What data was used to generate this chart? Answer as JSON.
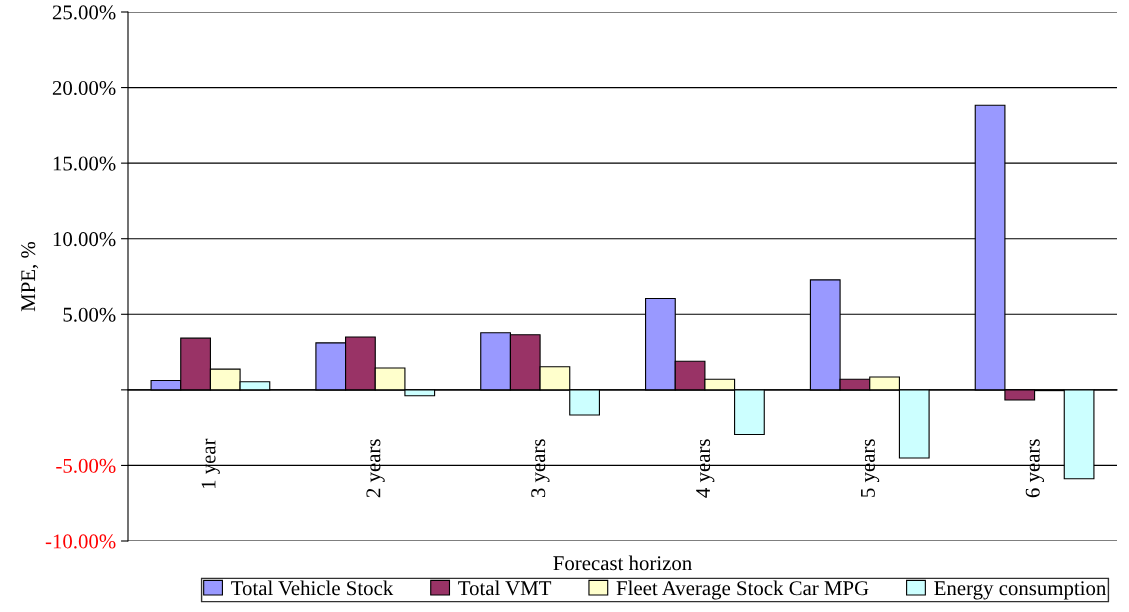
{
  "chart_data": {
    "type": "bar",
    "xlabel": "Forecast horizon",
    "ylabel": "MPE, %",
    "categories": [
      "1 year",
      "2 years",
      "3 years",
      "4 years",
      "5 years",
      "6 years"
    ],
    "series": [
      {
        "name": "Total Vehicle Stock",
        "color": "#9999ff",
        "values": [
          0.62,
          3.11,
          3.78,
          6.04,
          7.28,
          18.83
        ]
      },
      {
        "name": "Total VMT",
        "color": "#993366",
        "values": [
          3.42,
          3.5,
          3.65,
          1.89,
          0.7,
          -0.67
        ]
      },
      {
        "name": "Fleet Average Stock Car MPG",
        "color": "#ffffcc",
        "values": [
          1.37,
          1.45,
          1.53,
          0.7,
          0.85,
          -0.05
        ]
      },
      {
        "name": "Energy consumption",
        "color": "#ccffff",
        "values": [
          0.54,
          -0.39,
          -1.66,
          -2.95,
          -4.51,
          -5.88
        ]
      }
    ],
    "ylim": [
      -10,
      25
    ],
    "yticks": [
      {
        "value": -10,
        "label": "-10.00%"
      },
      {
        "value": -5,
        "label": "-5.00%"
      },
      {
        "value": 0,
        "label": null
      },
      {
        "value": 5,
        "label": "5.00%"
      },
      {
        "value": 10,
        "label": "10.00%"
      },
      {
        "value": 15,
        "label": "15.00%"
      },
      {
        "value": 20,
        "label": "20.00%"
      },
      {
        "value": 25,
        "label": "25.00%"
      }
    ],
    "grid": "y",
    "legend": "bottom"
  }
}
